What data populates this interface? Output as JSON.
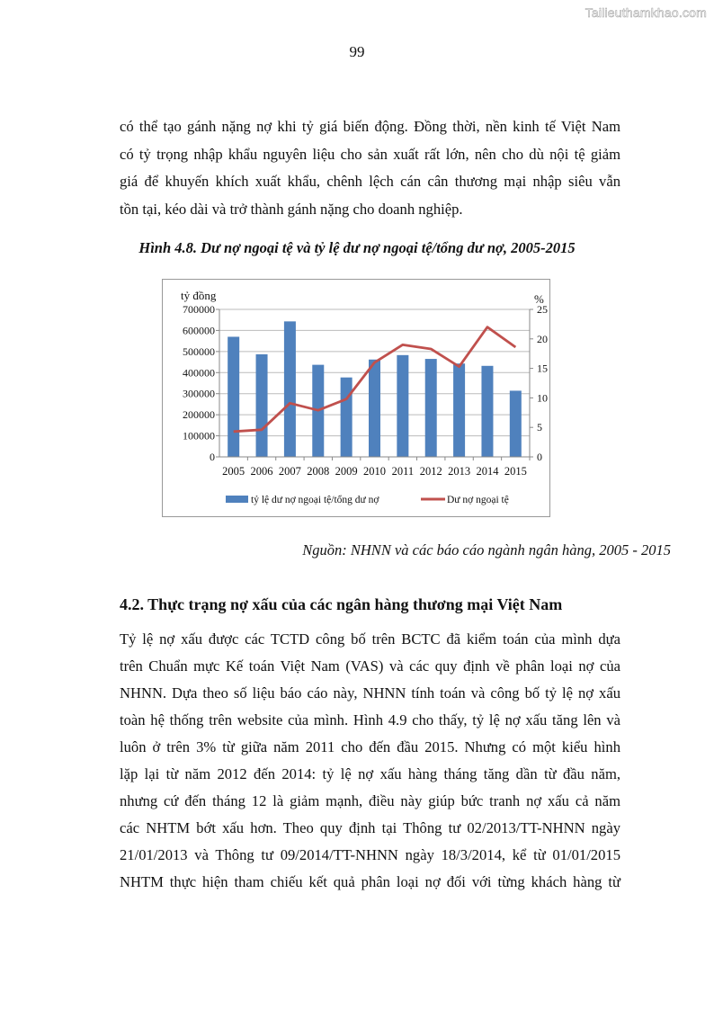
{
  "watermark": "Tailieuthamkhao.com",
  "page_number": "99",
  "paragraph1": [
    "có thể tạo gánh nặng nợ khi tỷ giá biến động. Đồng thời, nền kinh tế Việt Nam",
    "có tỷ trọng nhập khẩu nguyên liệu cho sản xuất rất lớn, nên cho dù nội tệ giảm",
    "giá để khuyến khích xuất khẩu, chênh lệch cán cân thương mại nhập siêu vẫn",
    "tồn tại, kéo dài và trở thành gánh nặng cho doanh nghiệp."
  ],
  "figure_caption": "Hình 4.8. Dư nợ ngoại tệ và tỷ lệ dư nợ ngoại tệ/tổng dư nợ, 2005-2015",
  "chart_data": {
    "type": "bar+line",
    "categories": [
      "2005",
      "2006",
      "2007",
      "2008",
      "2009",
      "2010",
      "2011",
      "2012",
      "2013",
      "2014",
      "2015"
    ],
    "ylabel_left": "tỷ đồng",
    "ylabel_right": "%",
    "ylim_left": [
      0,
      700000
    ],
    "ylim_right": [
      0,
      25
    ],
    "yticks_left": [
      "0",
      "100000",
      "200000",
      "300000",
      "400000",
      "500000",
      "600000",
      "700000"
    ],
    "yticks_right": [
      "0",
      "5",
      "10",
      "15",
      "20",
      "25"
    ],
    "grid": true,
    "legend_position": "bottom",
    "series": [
      {
        "name": "tỷ lệ dư nợ ngoại tệ/tổng dư nợ",
        "type": "bar",
        "axis": "left",
        "color": "#4f81bd",
        "values": [
          570000,
          487000,
          643000,
          437000,
          377000,
          462000,
          483000,
          465000,
          443000,
          432000,
          314000
        ]
      },
      {
        "name": "Dư nợ ngoại tệ",
        "type": "line",
        "axis": "right",
        "color": "#c0504d",
        "values": [
          4.3,
          4.6,
          9.1,
          7.9,
          9.8,
          16.0,
          19.0,
          18.3,
          15.3,
          22.0,
          18.6
        ]
      }
    ]
  },
  "source": "Nguồn: NHNN và các báo cáo ngành ngân hàng, 2005 - 2015",
  "section_heading": "4.2. Thực trạng nợ xấu của các ngân hàng thương mại Việt Nam",
  "paragraph2": [
    "Tỷ lệ nợ xấu được các TCTD công bố trên BCTC đã kiểm toán của mình dựa",
    "trên Chuẩn mực Kế toán Việt Nam (VAS) và các quy định về phân loại nợ của",
    "NHNN. Dựa theo số liệu báo cáo này, NHNN tính toán và công bố tỷ lệ nợ xấu",
    "toàn hệ thống trên website của mình. Hình 4.9 cho thấy, tỷ lệ nợ xấu tăng lên và",
    "luôn ở trên 3% từ giữa năm 2011 cho đến đầu 2015. Nhưng có một kiểu hình",
    "lặp lại từ năm 2012 đến 2014: tỷ lệ nợ xấu hàng tháng tăng dần từ đầu năm,",
    "nhưng cứ đến tháng 12 là giảm mạnh, điều này giúp bức tranh nợ xấu cả năm",
    "các NHTM bớt xấu hơn. Theo quy định tại Thông tư 02/2013/TT-NHNN ngày",
    "21/01/2013 và Thông tư 09/2014/TT-NHNN ngày 18/3/2014, kể từ 01/01/2015",
    "NHTM thực hiện tham chiếu kết quả phân loại nợ đối với từng khách hàng từ"
  ]
}
